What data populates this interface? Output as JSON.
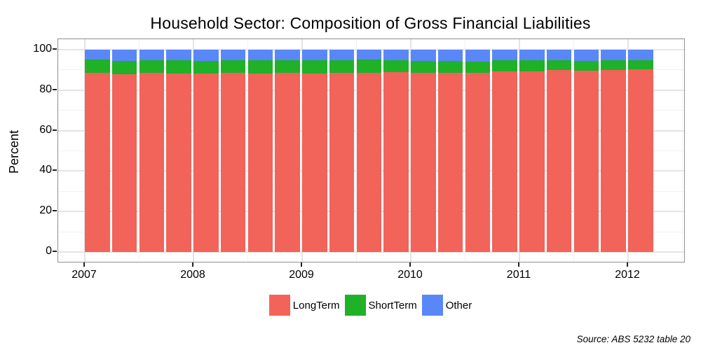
{
  "source_note": "Source: ABS 5232 table 20",
  "chart_data": {
    "type": "bar",
    "stacked": true,
    "title": "Household Sector: Composition of Gross Financial Liabilities",
    "xlabel": "",
    "ylabel": "Percent",
    "ylim": [
      0,
      100
    ],
    "grid": true,
    "legend_position": "bottom",
    "y_major_ticks": [
      0,
      20,
      40,
      60,
      80,
      100
    ],
    "y_minor_ticks": [
      10,
      30,
      50,
      70,
      90
    ],
    "x_year_ticks": [
      "2007",
      "2008",
      "2009",
      "2010",
      "2011",
      "2012"
    ],
    "categories": [
      "2007 Q1",
      "2007 Q2",
      "2007 Q3",
      "2007 Q4",
      "2008 Q1",
      "2008 Q2",
      "2008 Q3",
      "2008 Q4",
      "2009 Q1",
      "2009 Q2",
      "2009 Q3",
      "2009 Q4",
      "2010 Q1",
      "2010 Q2",
      "2010 Q3",
      "2010 Q4",
      "2011 Q1",
      "2011 Q2",
      "2011 Q3",
      "2011 Q4",
      "2012 Q1"
    ],
    "series": [
      {
        "name": "LongTerm",
        "color": "#F2635A",
        "values": [
          88.6,
          88.0,
          88.6,
          88.2,
          88.2,
          88.6,
          88.2,
          88.6,
          88.2,
          88.6,
          88.6,
          88.9,
          88.6,
          88.6,
          88.6,
          89.3,
          89.3,
          90.0,
          89.7,
          90.0,
          90.2
        ]
      },
      {
        "name": "ShortTerm",
        "color": "#1FB128",
        "values": [
          6.6,
          6.5,
          6.2,
          6.6,
          6.3,
          6.2,
          6.6,
          6.2,
          6.6,
          6.2,
          6.6,
          5.9,
          5.9,
          5.9,
          5.5,
          5.5,
          5.5,
          4.8,
          4.8,
          4.8,
          4.6
        ]
      },
      {
        "name": "Other",
        "color": "#5A87F8",
        "values": [
          4.8,
          5.5,
          5.2,
          5.2,
          5.5,
          5.2,
          5.2,
          5.2,
          5.2,
          5.2,
          4.8,
          5.2,
          5.5,
          5.5,
          5.9,
          5.2,
          5.2,
          5.2,
          5.5,
          5.2,
          5.2
        ]
      }
    ]
  }
}
